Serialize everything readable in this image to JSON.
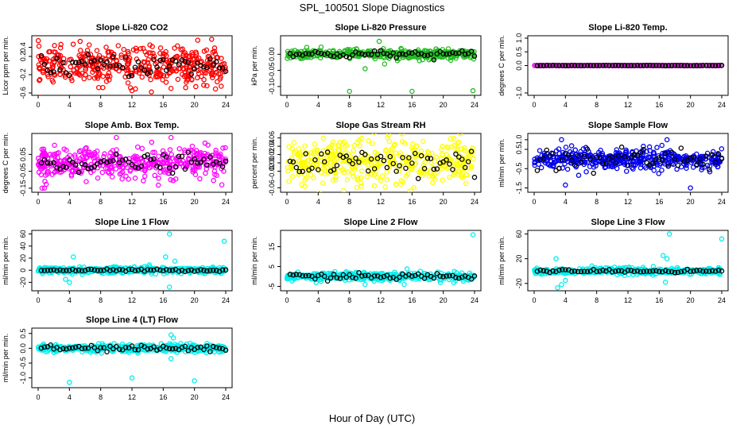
{
  "figure": {
    "title": "SPL_100501  Slope Diagnostics",
    "xlabel": "Hour of Day (UTC)"
  },
  "chart_data": [
    {
      "type": "scatter",
      "title": "Slope Li-820 CO2",
      "ylabel": "Licor ppm per min.",
      "color": "#ff0000",
      "xlim": [
        0,
        24
      ],
      "ylim": [
        -0.6,
        0.6
      ],
      "yticks": [
        "-0.6",
        "-0.2",
        "0.2",
        "0.4"
      ],
      "ytickvals": [
        -0.6,
        -0.2,
        0.2,
        0.4
      ],
      "xticks": [
        "0",
        "4",
        "8",
        "12",
        "16",
        "20",
        "24"
      ],
      "spread": 0.2,
      "black_spread": 0.12,
      "outliers": [
        [
          8.7,
          0.4
        ],
        [
          14.3,
          0.45
        ],
        [
          12,
          -0.55
        ],
        [
          17,
          -0.5
        ]
      ]
    },
    {
      "type": "scatter",
      "title": "Slope Li-820 Pressure",
      "ylabel": "kPa per min.",
      "color": "#22bb22",
      "xlim": [
        0,
        24
      ],
      "ylim": [
        -0.12,
        0.05
      ],
      "yticks": [
        "-0.10",
        "-0.05",
        "0.00"
      ],
      "ytickvals": [
        -0.1,
        -0.05,
        0.0
      ],
      "xticks": [
        "0",
        "4",
        "8",
        "12",
        "16",
        "20",
        "24"
      ],
      "spread": 0.007,
      "black_spread": 0.006,
      "outliers": [
        [
          8,
          -0.115
        ],
        [
          16,
          -0.115
        ],
        [
          23.8,
          -0.113
        ],
        [
          10,
          -0.045
        ],
        [
          12.5,
          -0.03
        ],
        [
          11.8,
          0.04
        ]
      ]
    },
    {
      "type": "scatter",
      "title": "Slope Li-820 Temp.",
      "ylabel": "degrees C per min.",
      "color": "#dd22dd",
      "xlim": [
        0,
        24
      ],
      "ylim": [
        -1.0,
        1.0
      ],
      "yticks": [
        "-1.0",
        "0.0",
        "0.5",
        "1.0"
      ],
      "ytickvals": [
        -1.0,
        0.0,
        0.5,
        1.0
      ],
      "xticks": [
        "0",
        "4",
        "8",
        "12",
        "16",
        "20",
        "24"
      ],
      "spread": 0.004,
      "black_spread": 0.004,
      "outliers": []
    },
    {
      "type": "scatter",
      "title": "Slope Amb. Box Temp.",
      "ylabel": "degrees C per min.",
      "color": "#ff00ff",
      "xlim": [
        0,
        24
      ],
      "ylim": [
        -0.16,
        0.16
      ],
      "yticks": [
        "-0.15",
        "-0.05",
        "0.05"
      ],
      "ytickvals": [
        -0.15,
        -0.05,
        0.05
      ],
      "xticks": [
        "0",
        "4",
        "8",
        "12",
        "16",
        "20",
        "24"
      ],
      "spread": 0.045,
      "black_spread": 0.025,
      "outliers": [
        [
          0.5,
          -0.15
        ],
        [
          23.5,
          -0.13
        ],
        [
          10,
          0.15
        ],
        [
          17,
          0.15
        ]
      ]
    },
    {
      "type": "scatter",
      "title": "Slope Gas Stream RH",
      "ylabel": "percent per min.",
      "color": "#ffff00",
      "xlim": [
        0,
        24
      ],
      "ylim": [
        -0.065,
        0.065
      ],
      "yticks": [
        "-0.06",
        "-0.02",
        "0.00",
        "0.02",
        "0.04",
        "0.06"
      ],
      "ytickvals": [
        -0.06,
        -0.02,
        0.0,
        0.02,
        0.04,
        0.06
      ],
      "xticks": [
        "0",
        "4",
        "8",
        "12",
        "16",
        "20",
        "24"
      ],
      "spread": 0.028,
      "black_spread": 0.02,
      "outliers": []
    },
    {
      "type": "scatter",
      "title": "Slope Sample Flow",
      "ylabel": "ml/min per min.",
      "color": "#0000ee",
      "xlim": [
        0,
        24
      ],
      "ylim": [
        -1.6,
        1.2
      ],
      "yticks": [
        "-1.5",
        "-0.5",
        "0.5",
        "1.0"
      ],
      "ytickvals": [
        -1.5,
        -0.5,
        0.5,
        1.0
      ],
      "xticks": [
        "0",
        "4",
        "8",
        "12",
        "16",
        "20",
        "24"
      ],
      "spread": 0.25,
      "black_spread": 0.3,
      "outliers": [
        [
          4,
          -1.35
        ],
        [
          20,
          -1.5
        ],
        [
          17,
          1.0
        ],
        [
          3.5,
          1.0
        ]
      ]
    },
    {
      "type": "scatter",
      "title": "Slope Line 1 Flow",
      "ylabel": "ml/min per min.",
      "color": "#00eeee",
      "xlim": [
        0,
        24
      ],
      "ylim": [
        -30,
        62
      ],
      "yticks": [
        "-20",
        "0",
        "20",
        "40",
        "60"
      ],
      "ytickvals": [
        -20,
        0,
        20,
        40,
        60
      ],
      "xticks": [
        "0",
        "4",
        "8",
        "12",
        "16",
        "20",
        "24"
      ],
      "spread": 2.5,
      "black_spread": 1.0,
      "outliers": [
        [
          16.8,
          60
        ],
        [
          23.8,
          48
        ],
        [
          16.3,
          22
        ],
        [
          17.5,
          15
        ],
        [
          3.5,
          -15
        ],
        [
          4,
          -20
        ],
        [
          16.8,
          -28
        ],
        [
          4.5,
          22
        ]
      ]
    },
    {
      "type": "scatter",
      "title": "Slope Line 2 Flow",
      "ylabel": "ml/min per min.",
      "color": "#00eeee",
      "xlim": [
        0,
        24
      ],
      "ylim": [
        -6,
        22
      ],
      "yticks": [
        "-5",
        "5",
        "15"
      ],
      "ytickvals": [
        -5,
        5,
        15
      ],
      "xticks": [
        "0",
        "4",
        "8",
        "12",
        "16",
        "20",
        "24"
      ],
      "spread": 1.0,
      "black_spread": 0.8,
      "outliers": [
        [
          23.8,
          21
        ],
        [
          10,
          -4
        ],
        [
          15,
          -4
        ]
      ]
    },
    {
      "type": "scatter",
      "title": "Slope Line 3 Flow",
      "ylabel": "ml/min per min.",
      "color": "#00eeee",
      "xlim": [
        0,
        24
      ],
      "ylim": [
        -28,
        62
      ],
      "yticks": [
        "-20",
        "20",
        "60"
      ],
      "ytickvals": [
        -20,
        20,
        60
      ],
      "xticks": [
        "0",
        "4",
        "8",
        "12",
        "16",
        "20",
        "24"
      ],
      "spread": 2.5,
      "black_spread": 1.2,
      "outliers": [
        [
          17.3,
          60
        ],
        [
          24,
          52
        ],
        [
          3,
          -27
        ],
        [
          3.5,
          -22
        ],
        [
          4,
          -15
        ],
        [
          16.5,
          25
        ],
        [
          17,
          20
        ],
        [
          16.8,
          -18
        ],
        [
          2.8,
          20
        ]
      ]
    },
    {
      "type": "scatter",
      "title": "Slope Line 4 (LT) Flow",
      "ylabel": "ml/min per min.",
      "color": "#00eeee",
      "xlim": [
        0,
        24
      ],
      "ylim": [
        -1.25,
        0.6
      ],
      "yticks": [
        "-1.0",
        "-0.5",
        "0.0",
        "0.5"
      ],
      "ytickvals": [
        -1.0,
        -0.5,
        0.0,
        0.5
      ],
      "xticks": [
        "0",
        "4",
        "8",
        "12",
        "16",
        "20",
        "24"
      ],
      "spread": 0.06,
      "black_spread": 0.05,
      "outliers": [
        [
          4,
          -1.15
        ],
        [
          12,
          -1.0
        ],
        [
          20,
          -1.1
        ],
        [
          17,
          0.45
        ],
        [
          17.3,
          0.35
        ],
        [
          17,
          -0.35
        ]
      ]
    }
  ]
}
